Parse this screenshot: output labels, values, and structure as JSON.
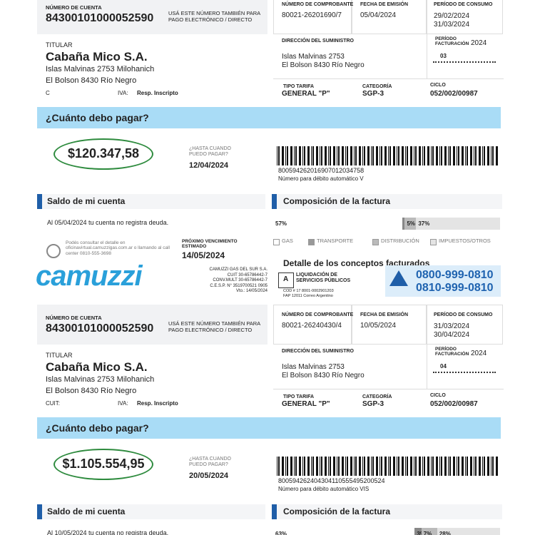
{
  "bills": [
    {
      "account_label": "NÚMERO DE CUENTA",
      "account": "84300101000052590",
      "account_note": "USÁ ESTE NÚMERO TAMBIÉN PARA PAGO ELECTRÓNICO / DIRECTO",
      "comprobante_label": "NÚMERO DE COMPROBANTE",
      "comprobante": "80021-26201690/7",
      "emision_label": "FECHA DE EMISIÓN",
      "emision": "05/04/2024",
      "periodo_label": "PERÍODO DE CONSUMO",
      "periodo_from": "29/02/2024",
      "periodo_to": "31/03/2024",
      "titular_label": "TITULAR",
      "titular": "Cabaña Mico S.A.",
      "address1": "Islas Malvinas 2753 Milohanich",
      "address2": "El Bolson 8430 Río Negro",
      "cuit_label": "C",
      "iva_label": "IVA:",
      "iva": "Resp. Inscripto",
      "suministro_label": "DIRECCIÓN DEL SUMINISTRO",
      "suministro1": "Islas Malvinas 2753",
      "suministro2": "El Bolson 8430 Río Negro",
      "periodo_fact_label": "PERÍODO FACTURACIÓN",
      "periodo_year": "2024",
      "periodo_num": "03",
      "tarifa_label": "TIPO TARIFA",
      "tarifa": "GENERAL \"P\"",
      "categoria_label": "CATEGORÍA",
      "categoria": "SGP-3",
      "ciclo_label": "CICLO",
      "ciclo": "052/002/00987",
      "pay_heading": "¿Cuánto debo pagar?",
      "amount": "$120.347,58",
      "due_label": "¿HASTA CUANDO PUEDO PAGAR?",
      "due": "12/04/2024",
      "barcode_number": "800594262016907012034758",
      "debit": "Número para débito automático V",
      "saldo_heading": "Saldo de mi cuenta",
      "saldo_text": "Al 05/04/2024 tu cuenta no registra deuda.",
      "composicion_heading": "Composición de la factura",
      "composition": {
        "segments": [
          {
            "value": 57,
            "label": "57%"
          },
          {
            "value": 1,
            "label": "1%"
          },
          {
            "value": 5,
            "label": "5%"
          },
          {
            "value": 37,
            "label": "37%"
          }
        ],
        "legend": [
          "GAS",
          "TRANSPORTE",
          "DISTRIBUCIÓN",
          "IMPUESTOS/OTROS"
        ]
      },
      "info_text": "Podés consultar el detalle en oficinavirtual.camuzzigas.com.ar o llamando al call center 0810-555-3698",
      "prox_label": "PRÓXIMO VENCIMIENTO ESTIMADO",
      "prox": "14/05/2024",
      "detalle_heading": "Detalle de los conceptos facturados"
    },
    {
      "account_label": "NÚMERO DE CUENTA",
      "account": "84300101000052590",
      "account_note": "USÁ ESTE NÚMERO TAMBIÉN PARA PAGO ELECTRÓNICO / DIRECTO",
      "comprobante_label": "NÚMERO DE COMPROBANTE",
      "comprobante": "80021-26240430/4",
      "emision_label": "FECHA DE EMISIÓN",
      "emision": "10/05/2024",
      "periodo_label": "PERÍODO DE CONSUMO",
      "periodo_from": "31/03/2024",
      "periodo_to": "30/04/2024",
      "titular_label": "TITULAR",
      "titular": "Cabaña Mico S.A.",
      "address1": "Islas Malvinas 2753 Milohanich",
      "address2": "El Bolson 8430 Río Negro",
      "cuit_label": "CUIT:",
      "iva_label": "IVA:",
      "iva": "Resp. Inscripto",
      "suministro_label": "DIRECCIÓN DEL SUMINISTRO",
      "suministro1": "Islas Malvinas 2753",
      "suministro2": "El Bolson 8430 Río Negro",
      "periodo_fact_label": "PERÍODO FACTURACIÓN",
      "periodo_year": "2024",
      "periodo_num": "04",
      "tarifa_label": "TIPO TARIFA",
      "tarifa": "GENERAL \"P\"",
      "categoria_label": "CATEGORÍA",
      "categoria": "SGP-3",
      "ciclo_label": "CICLO",
      "ciclo": "052/002/00987",
      "pay_heading": "¿Cuánto debo pagar?",
      "amount": "$1.105.554,95",
      "due_label": "¿HASTA CUANDO PUEDO PAGAR?",
      "due": "20/05/2024",
      "barcode_number": "800594262404304110555495200524",
      "debit": "Número para débito automático VIS",
      "saldo_heading": "Saldo de mi cuenta",
      "saldo_text": "Al 10/05/2024 tu cuenta no registra deuda.",
      "composicion_heading": "Composición de la factura",
      "composition": {
        "segments": [
          {
            "value": 63,
            "label": "63%"
          },
          {
            "value": 3,
            "label": "3%"
          },
          {
            "value": 7,
            "label": "7%"
          },
          {
            "value": 28,
            "label": "28%"
          }
        ]
      }
    }
  ],
  "middle": {
    "logo": "camuzzi",
    "company": [
      "CAMUZZI GAS DEL SUR S.A.",
      "CUIT 30-65786442-7",
      "CONV.MULT 30-65786442-7",
      "C.E.S.P. N° 3519700521 0905",
      "Vto.: 14/05/2024"
    ],
    "letter": "A",
    "liquidacion": "LIQUIDACIÓN DE SERVICIOS PÚBLICOS",
    "cod": [
      "COD # 17 8001-0002901203",
      "FAP 12011 Correo Argentino"
    ],
    "phones": [
      "0800-999-0810",
      "0810-999-0810"
    ]
  }
}
